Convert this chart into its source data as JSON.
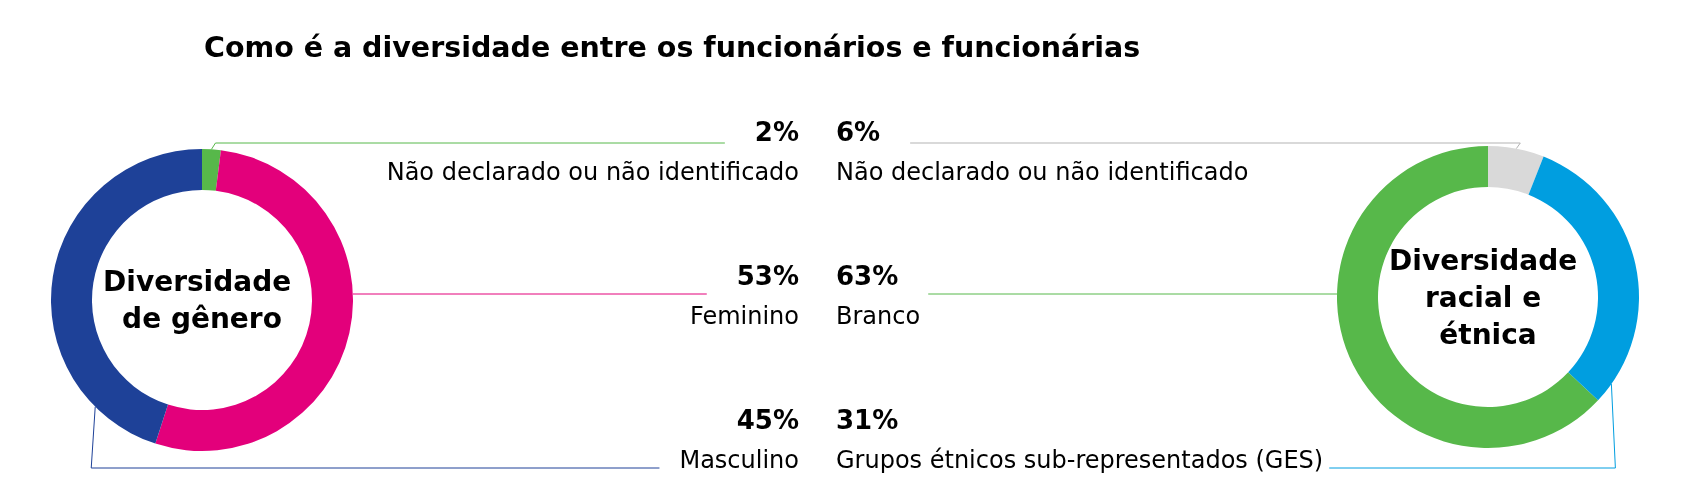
{
  "chart_data": [
    {
      "type": "donut",
      "title": "Como é a diversidade entre os funcionários e funcionárias",
      "annotations": [
        "Diversidade de gênero"
      ],
      "categories": [
        "Não declarado ou não identificado",
        "Feminino",
        "Masculino"
      ],
      "values": [
        2,
        53,
        45
      ],
      "value_labels": [
        "2%",
        "53%",
        "45%"
      ],
      "colors": [
        "#57b84a",
        "#e3007b",
        "#1e4198"
      ]
    },
    {
      "type": "donut",
      "annotations": [
        "Diversidade racial e étnica"
      ],
      "categories": [
        "Não declarado ou não identificado",
        "Branco",
        "Grupos étnicos sub-representados (GES)"
      ],
      "values": [
        6,
        63,
        31
      ],
      "value_labels": [
        "6%",
        "63%",
        "31%"
      ],
      "colors": [
        "#d9d9d9",
        "#57b84a",
        "#009ee0"
      ]
    }
  ]
}
